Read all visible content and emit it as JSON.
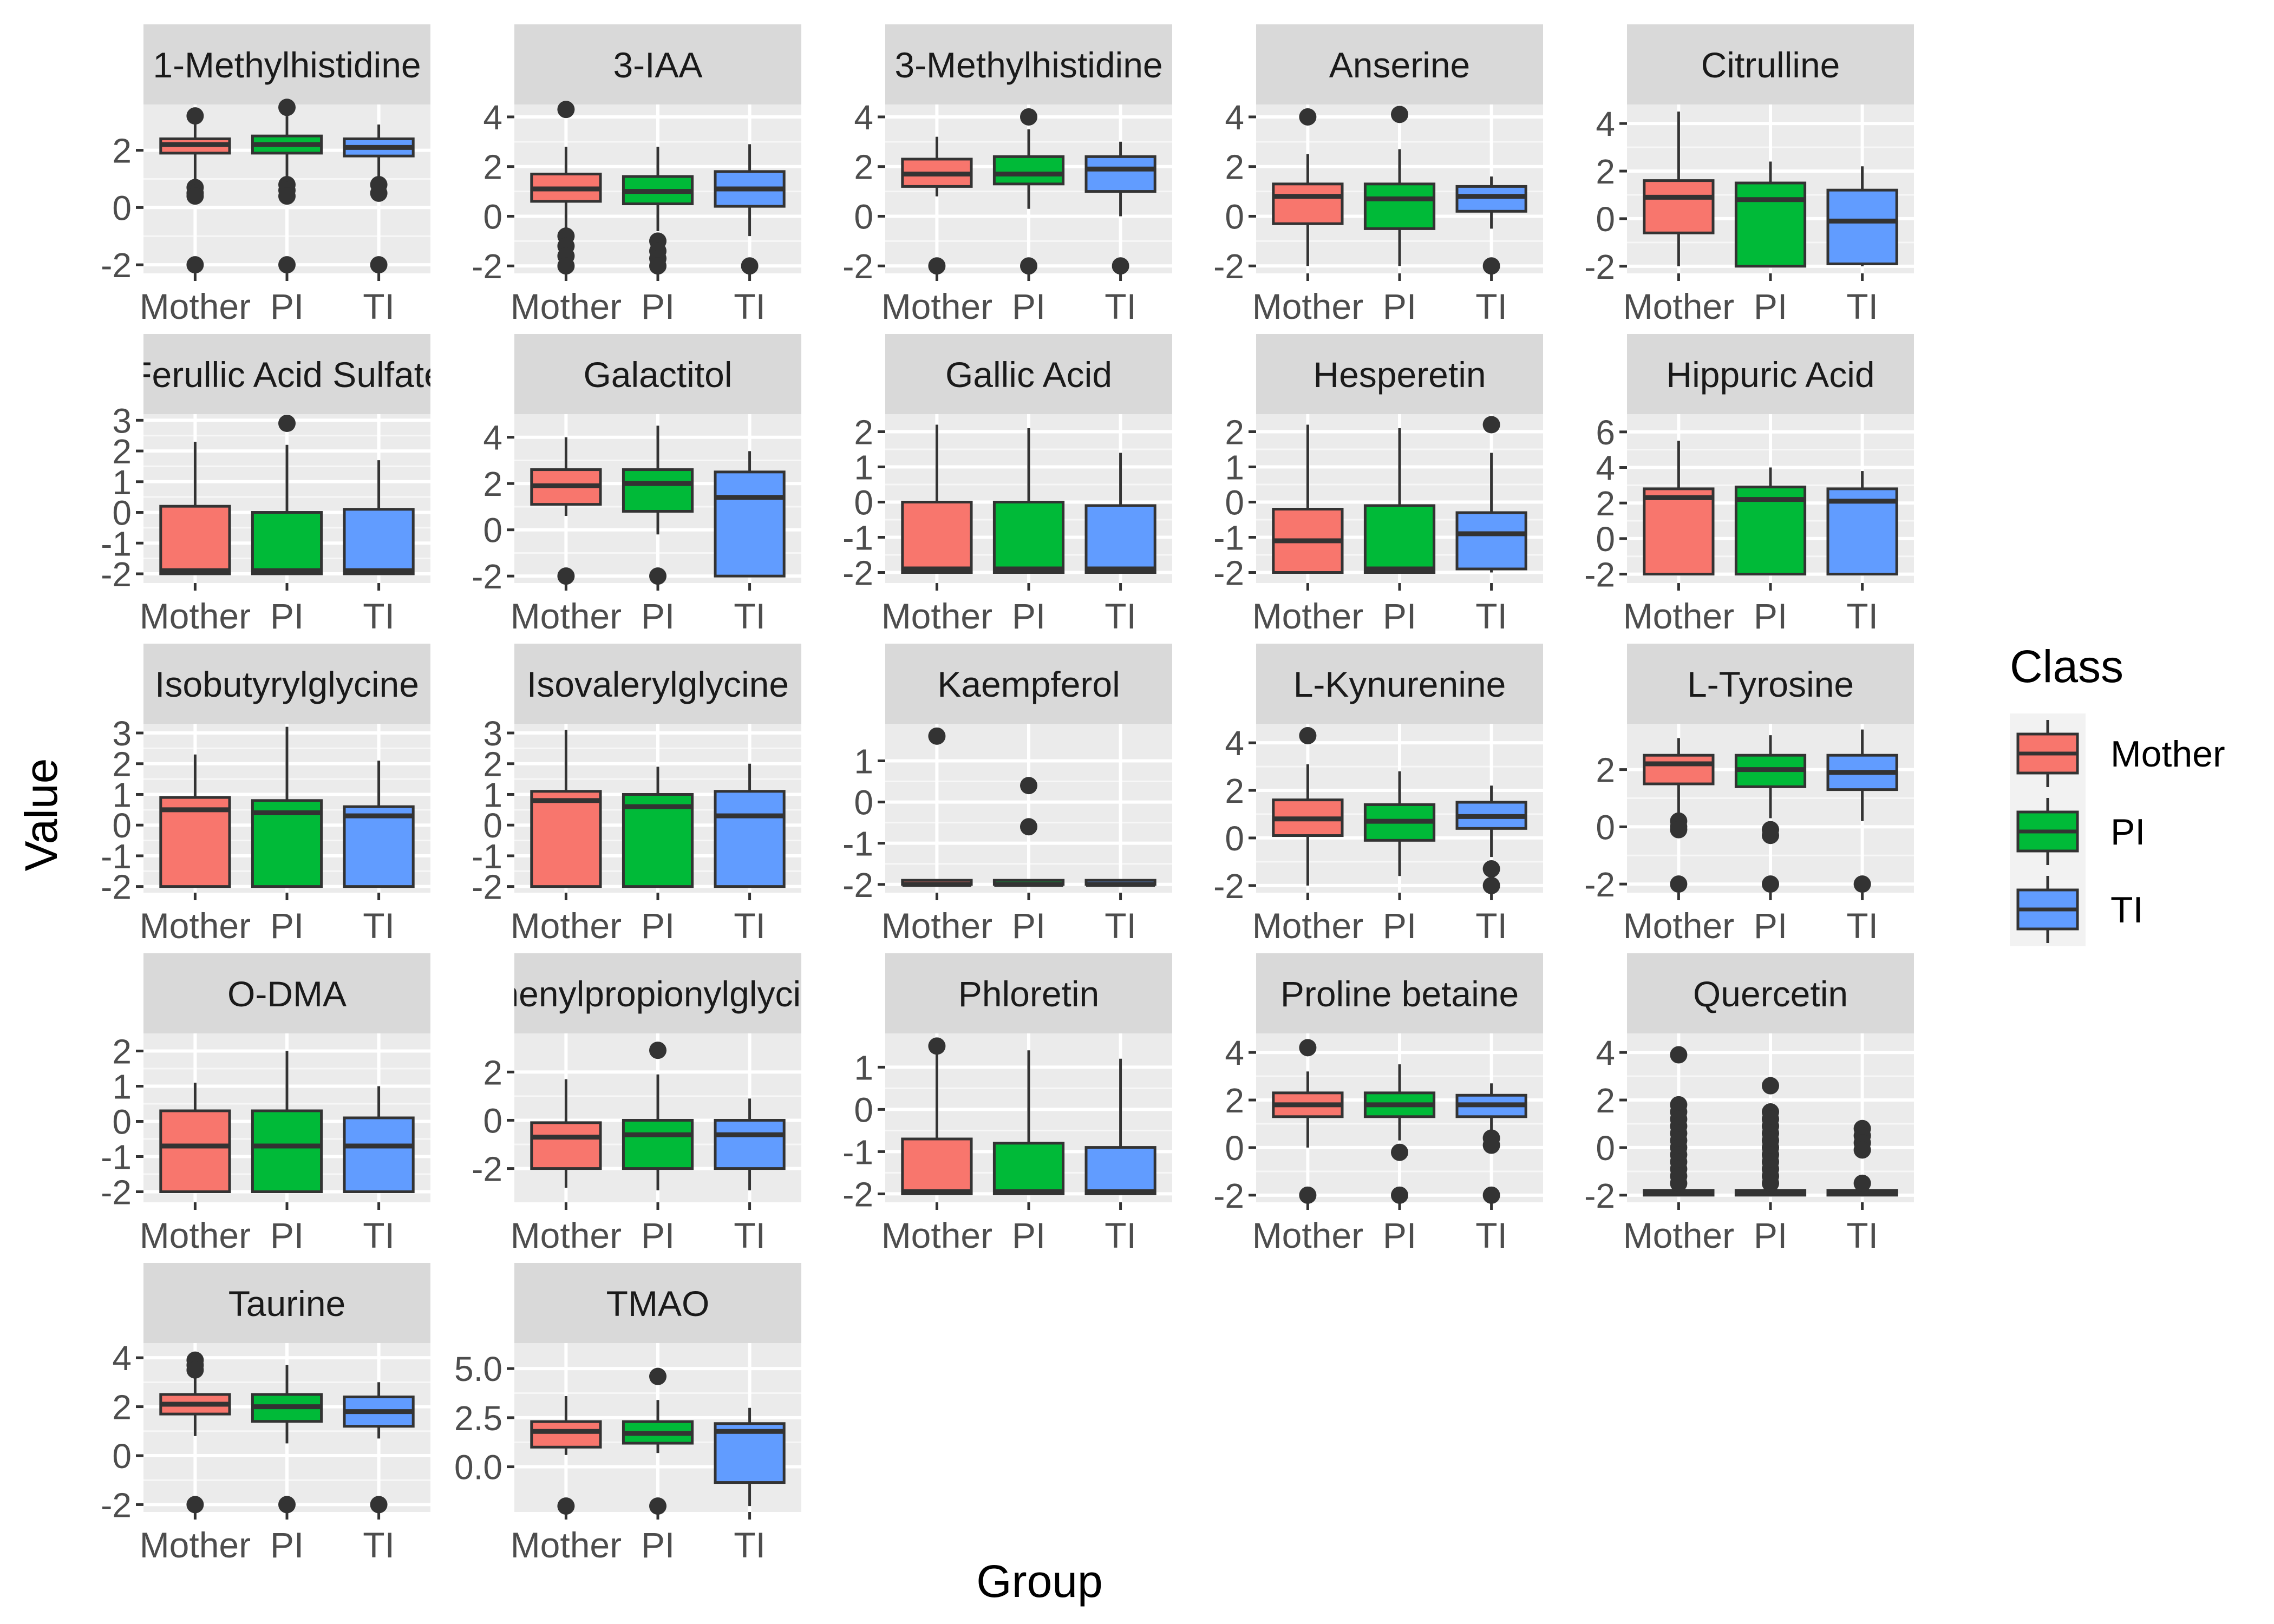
{
  "chart_data": {
    "type": "boxplot",
    "xlabel": "Group",
    "ylabel": "Value",
    "groups": [
      "Mother",
      "PI",
      "TI"
    ],
    "legend": {
      "title": "Class",
      "position": "right",
      "entries": [
        {
          "label": "Mother",
          "color": "#F8766D"
        },
        {
          "label": "PI",
          "color": "#00BA38"
        },
        {
          "label": "TI",
          "color": "#619CFF"
        }
      ]
    },
    "grid": true,
    "panels": [
      {
        "title": "1-Methylhistidine",
        "ylim": [
          -2.3,
          3.6
        ],
        "ticks": [
          -2,
          0,
          2
        ],
        "boxes": [
          {
            "min": 0.8,
            "q1": 1.9,
            "median": 2.2,
            "q3": 2.4,
            "max": 3.0,
            "outliers": [
              3.2,
              0.7,
              0.5,
              0.4,
              -2
            ]
          },
          {
            "min": 0.9,
            "q1": 1.9,
            "median": 2.2,
            "q3": 2.5,
            "max": 3.2,
            "outliers": [
              3.5,
              0.8,
              0.6,
              0.4,
              -2
            ]
          },
          {
            "min": 0.9,
            "q1": 1.8,
            "median": 2.1,
            "q3": 2.4,
            "max": 2.9,
            "outliers": [
              0.8,
              0.5,
              -2
            ]
          }
        ]
      },
      {
        "title": "3-IAA",
        "ylim": [
          -2.3,
          4.5
        ],
        "ticks": [
          -2,
          0,
          2,
          4
        ],
        "boxes": [
          {
            "min": -0.5,
            "q1": 0.6,
            "median": 1.1,
            "q3": 1.7,
            "max": 2.8,
            "outliers": [
              4.3,
              -0.8,
              -1.2,
              -1.6,
              -2
            ]
          },
          {
            "min": -0.6,
            "q1": 0.5,
            "median": 1.0,
            "q3": 1.6,
            "max": 2.8,
            "outliers": [
              -1.0,
              -1.4,
              -1.7,
              -2
            ]
          },
          {
            "min": -0.8,
            "q1": 0.4,
            "median": 1.1,
            "q3": 1.8,
            "max": 2.9,
            "outliers": [
              -2
            ]
          }
        ]
      },
      {
        "title": "3-Methylhistidine",
        "ylim": [
          -2.3,
          4.5
        ],
        "ticks": [
          -2,
          0,
          2,
          4
        ],
        "boxes": [
          {
            "min": 0.8,
            "q1": 1.2,
            "median": 1.7,
            "q3": 2.3,
            "max": 3.2,
            "outliers": [
              -2
            ]
          },
          {
            "min": 0.3,
            "q1": 1.3,
            "median": 1.7,
            "q3": 2.4,
            "max": 3.5,
            "outliers": [
              4.0,
              -2
            ]
          },
          {
            "min": 0.0,
            "q1": 1.0,
            "median": 1.9,
            "q3": 2.4,
            "max": 3.0,
            "outliers": [
              -2
            ]
          }
        ]
      },
      {
        "title": "Anserine",
        "ylim": [
          -2.3,
          4.5
        ],
        "ticks": [
          -2,
          0,
          2,
          4
        ],
        "boxes": [
          {
            "min": -2.0,
            "q1": -0.3,
            "median": 0.8,
            "q3": 1.3,
            "max": 2.5,
            "outliers": [
              4.0
            ]
          },
          {
            "min": -2.0,
            "q1": -0.5,
            "median": 0.7,
            "q3": 1.3,
            "max": 2.7,
            "outliers": [
              4.1
            ]
          },
          {
            "min": -0.5,
            "q1": 0.2,
            "median": 0.8,
            "q3": 1.2,
            "max": 1.6,
            "outliers": [
              -2
            ]
          }
        ]
      },
      {
        "title": "Citrulline",
        "ylim": [
          -2.3,
          4.8
        ],
        "ticks": [
          -2,
          0,
          2,
          4
        ],
        "boxes": [
          {
            "min": -2.0,
            "q1": -0.6,
            "median": 0.9,
            "q3": 1.6,
            "max": 4.5,
            "outliers": []
          },
          {
            "min": -2.0,
            "q1": -2.0,
            "median": 0.8,
            "q3": 1.5,
            "max": 2.4,
            "outliers": []
          },
          {
            "min": -2.0,
            "q1": -1.9,
            "median": -0.1,
            "q3": 1.2,
            "max": 2.2,
            "outliers": []
          }
        ]
      },
      {
        "title": "Ferullic Acid Sulfate",
        "ylim": [
          -2.3,
          3.2
        ],
        "ticks": [
          -2,
          -1,
          0,
          1,
          2,
          3
        ],
        "boxes": [
          {
            "min": -2.0,
            "q1": -2.0,
            "median": -1.9,
            "q3": 0.2,
            "max": 2.3,
            "outliers": []
          },
          {
            "min": -2.0,
            "q1": -2.0,
            "median": -1.9,
            "q3": 0.0,
            "max": 2.2,
            "outliers": [
              2.9
            ]
          },
          {
            "min": -2.0,
            "q1": -2.0,
            "median": -1.9,
            "q3": 0.1,
            "max": 1.7,
            "outliers": []
          }
        ]
      },
      {
        "title": "Galactitol",
        "ylim": [
          -2.3,
          5.0
        ],
        "ticks": [
          -2,
          0,
          2,
          4
        ],
        "boxes": [
          {
            "min": 0.6,
            "q1": 1.1,
            "median": 1.9,
            "q3": 2.6,
            "max": 4.0,
            "outliers": [
              -2
            ]
          },
          {
            "min": -0.2,
            "q1": 0.8,
            "median": 2.0,
            "q3": 2.6,
            "max": 4.5,
            "outliers": [
              -2
            ]
          },
          {
            "min": -2.0,
            "q1": -2.0,
            "median": 1.4,
            "q3": 2.5,
            "max": 3.4,
            "outliers": []
          }
        ]
      },
      {
        "title": "Gallic Acid",
        "ylim": [
          -2.3,
          2.5
        ],
        "ticks": [
          -2,
          -1,
          0,
          1,
          2
        ],
        "boxes": [
          {
            "min": -2.0,
            "q1": -2.0,
            "median": -1.9,
            "q3": 0.0,
            "max": 2.2,
            "outliers": []
          },
          {
            "min": -2.0,
            "q1": -2.0,
            "median": -1.9,
            "q3": 0.0,
            "max": 2.1,
            "outliers": []
          },
          {
            "min": -2.0,
            "q1": -2.0,
            "median": -1.9,
            "q3": -0.1,
            "max": 1.4,
            "outliers": []
          }
        ]
      },
      {
        "title": "Hesperetin",
        "ylim": [
          -2.3,
          2.5
        ],
        "ticks": [
          -2,
          -1,
          0,
          1,
          2
        ],
        "boxes": [
          {
            "min": -2.0,
            "q1": -2.0,
            "median": -1.1,
            "q3": -0.2,
            "max": 2.2,
            "outliers": []
          },
          {
            "min": -2.0,
            "q1": -2.0,
            "median": -1.9,
            "q3": -0.1,
            "max": 2.1,
            "outliers": []
          },
          {
            "min": -2.0,
            "q1": -1.9,
            "median": -0.9,
            "q3": -0.3,
            "max": 1.4,
            "outliers": [
              2.2
            ]
          }
        ]
      },
      {
        "title": "Hippuric Acid",
        "ylim": [
          -2.5,
          7.0
        ],
        "ticks": [
          -2,
          0,
          2,
          4,
          6
        ],
        "boxes": [
          {
            "min": -2.0,
            "q1": -2.0,
            "median": 2.3,
            "q3": 2.8,
            "max": 5.5,
            "outliers": []
          },
          {
            "min": -2.0,
            "q1": -2.0,
            "median": 2.2,
            "q3": 2.9,
            "max": 4.0,
            "outliers": []
          },
          {
            "min": -2.0,
            "q1": -2.0,
            "median": 2.1,
            "q3": 2.8,
            "max": 3.8,
            "outliers": []
          }
        ]
      },
      {
        "title": "Isobutyrylglycine",
        "ylim": [
          -2.2,
          3.3
        ],
        "ticks": [
          -2,
          -1,
          0,
          1,
          2,
          3
        ],
        "boxes": [
          {
            "min": -2.0,
            "q1": -2.0,
            "median": 0.5,
            "q3": 0.9,
            "max": 2.3,
            "outliers": []
          },
          {
            "min": -2.0,
            "q1": -2.0,
            "median": 0.4,
            "q3": 0.8,
            "max": 3.2,
            "outliers": []
          },
          {
            "min": -2.0,
            "q1": -2.0,
            "median": 0.3,
            "q3": 0.6,
            "max": 2.1,
            "outliers": []
          }
        ]
      },
      {
        "title": "Isovalerylglycine",
        "ylim": [
          -2.2,
          3.3
        ],
        "ticks": [
          -2,
          -1,
          0,
          1,
          2,
          3
        ],
        "boxes": [
          {
            "min": -2.0,
            "q1": -2.0,
            "median": 0.8,
            "q3": 1.1,
            "max": 3.1,
            "outliers": []
          },
          {
            "min": -2.0,
            "q1": -2.0,
            "median": 0.6,
            "q3": 1.0,
            "max": 1.9,
            "outliers": []
          },
          {
            "min": -2.0,
            "q1": -2.0,
            "median": 0.3,
            "q3": 1.1,
            "max": 2.0,
            "outliers": []
          }
        ]
      },
      {
        "title": "Kaempferol",
        "ylim": [
          -2.2,
          1.9
        ],
        "ticks": [
          -2,
          -1,
          0,
          1
        ],
        "boxes": [
          {
            "min": -2.0,
            "q1": -2.0,
            "median": -2.0,
            "q3": -1.9,
            "max": -1.9,
            "outliers": [
              1.6
            ]
          },
          {
            "min": -2.0,
            "q1": -2.0,
            "median": -2.0,
            "q3": -1.9,
            "max": -1.9,
            "outliers": [
              0.4,
              -0.6
            ]
          },
          {
            "min": -2.0,
            "q1": -2.0,
            "median": -2.0,
            "q3": -1.9,
            "max": -1.9,
            "outliers": []
          }
        ]
      },
      {
        "title": "L-Kynurenine",
        "ylim": [
          -2.3,
          4.8
        ],
        "ticks": [
          -2,
          0,
          2,
          4
        ],
        "boxes": [
          {
            "min": -2.0,
            "q1": 0.1,
            "median": 0.8,
            "q3": 1.6,
            "max": 3.1,
            "outliers": [
              4.3
            ]
          },
          {
            "min": -1.6,
            "q1": -0.1,
            "median": 0.7,
            "q3": 1.4,
            "max": 2.8,
            "outliers": []
          },
          {
            "min": -0.8,
            "q1": 0.4,
            "median": 0.9,
            "q3": 1.5,
            "max": 2.2,
            "outliers": [
              -1.3,
              -2
            ]
          }
        ]
      },
      {
        "title": "L-Tyrosine",
        "ylim": [
          -2.3,
          3.6
        ],
        "ticks": [
          -2,
          0,
          2
        ],
        "boxes": [
          {
            "min": 0.3,
            "q1": 1.5,
            "median": 2.2,
            "q3": 2.5,
            "max": 3.1,
            "outliers": [
              0.2,
              0.0,
              -0.1,
              -2
            ]
          },
          {
            "min": 0.3,
            "q1": 1.4,
            "median": 2.0,
            "q3": 2.5,
            "max": 3.2,
            "outliers": [
              -0.1,
              -0.3,
              -2
            ]
          },
          {
            "min": 0.2,
            "q1": 1.3,
            "median": 1.9,
            "q3": 2.5,
            "max": 3.4,
            "outliers": [
              -2
            ]
          }
        ]
      },
      {
        "title": "O-DMA",
        "ylim": [
          -2.3,
          2.5
        ],
        "ticks": [
          -2,
          -1,
          0,
          1,
          2
        ],
        "boxes": [
          {
            "min": -2.0,
            "q1": -2.0,
            "median": -0.7,
            "q3": 0.3,
            "max": 1.1,
            "outliers": []
          },
          {
            "min": -2.0,
            "q1": -2.0,
            "median": -0.7,
            "q3": 0.3,
            "max": 2.0,
            "outliers": []
          },
          {
            "min": -2.0,
            "q1": -2.0,
            "median": -0.7,
            "q3": 0.1,
            "max": 1.0,
            "outliers": []
          }
        ]
      },
      {
        "title": "Phenylpropionylglycine",
        "ylim": [
          -3.4,
          3.6
        ],
        "ticks": [
          -2,
          0,
          2
        ],
        "boxes": [
          {
            "min": -2.8,
            "q1": -2.0,
            "median": -0.7,
            "q3": -0.1,
            "max": 1.7,
            "outliers": []
          },
          {
            "min": -2.9,
            "q1": -2.0,
            "median": -0.6,
            "q3": 0.0,
            "max": 1.9,
            "outliers": [
              2.9
            ]
          },
          {
            "min": -2.9,
            "q1": -2.0,
            "median": -0.6,
            "q3": 0.0,
            "max": 0.9,
            "outliers": []
          }
        ]
      },
      {
        "title": "Phloretin",
        "ylim": [
          -2.2,
          1.8
        ],
        "ticks": [
          -2,
          -1,
          0,
          1
        ],
        "boxes": [
          {
            "min": -2.0,
            "q1": -2.0,
            "median": -1.95,
            "q3": -0.7,
            "max": 1.4,
            "outliers": [
              1.5
            ]
          },
          {
            "min": -2.0,
            "q1": -2.0,
            "median": -1.95,
            "q3": -0.8,
            "max": 1.4,
            "outliers": []
          },
          {
            "min": -2.0,
            "q1": -2.0,
            "median": -1.95,
            "q3": -0.9,
            "max": 1.2,
            "outliers": []
          }
        ]
      },
      {
        "title": "Proline betaine",
        "ylim": [
          -2.3,
          4.8
        ],
        "ticks": [
          -2,
          0,
          2,
          4
        ],
        "boxes": [
          {
            "min": 0.0,
            "q1": 1.3,
            "median": 1.8,
            "q3": 2.3,
            "max": 3.2,
            "outliers": [
              4.2,
              -2
            ]
          },
          {
            "min": 0.3,
            "q1": 1.3,
            "median": 1.8,
            "q3": 2.3,
            "max": 3.5,
            "outliers": [
              -0.2,
              -2
            ]
          },
          {
            "min": 0.6,
            "q1": 1.3,
            "median": 1.8,
            "q3": 2.2,
            "max": 2.7,
            "outliers": [
              0.4,
              0.1,
              -2
            ]
          }
        ]
      },
      {
        "title": "Quercetin",
        "ylim": [
          -2.3,
          4.8
        ],
        "ticks": [
          -2,
          0,
          2,
          4
        ],
        "boxes": [
          {
            "min": -2.0,
            "q1": -2.0,
            "median": -1.9,
            "q3": -1.8,
            "max": -1.7,
            "outliers": [
              3.9,
              1.8,
              1.5,
              1.2,
              0.9,
              0.6,
              0.3,
              0.0,
              -0.3,
              -0.6,
              -0.9,
              -1.2,
              -1.5
            ]
          },
          {
            "min": -2.0,
            "q1": -2.0,
            "median": -1.9,
            "q3": -1.8,
            "max": -1.7,
            "outliers": [
              2.6,
              1.5,
              1.2,
              0.9,
              0.6,
              0.3,
              0.0,
              -0.3,
              -0.6,
              -0.9,
              -1.2,
              -1.5
            ]
          },
          {
            "min": -2.0,
            "q1": -2.0,
            "median": -1.9,
            "q3": -1.8,
            "max": -1.7,
            "outliers": [
              0.8,
              0.5,
              0.2,
              -0.1,
              -1.5
            ]
          }
        ]
      },
      {
        "title": "Taurine",
        "ylim": [
          -2.3,
          4.6
        ],
        "ticks": [
          -2,
          0,
          2,
          4
        ],
        "boxes": [
          {
            "min": 0.8,
            "q1": 1.7,
            "median": 2.1,
            "q3": 2.5,
            "max": 3.3,
            "outliers": [
              3.9,
              3.7,
              3.5,
              -2
            ]
          },
          {
            "min": 0.5,
            "q1": 1.4,
            "median": 2.0,
            "q3": 2.5,
            "max": 3.7,
            "outliers": [
              -2
            ]
          },
          {
            "min": 0.7,
            "q1": 1.2,
            "median": 1.8,
            "q3": 2.4,
            "max": 3.0,
            "outliers": [
              -2
            ]
          }
        ]
      },
      {
        "title": "TMAO",
        "ylim": [
          -2.3,
          6.3
        ],
        "ticks": [
          0.0,
          2.5,
          5.0
        ],
        "tick_labels": [
          "0.0",
          "2.5",
          "5.0"
        ],
        "boxes": [
          {
            "min": 0.6,
            "q1": 1.0,
            "median": 1.8,
            "q3": 2.3,
            "max": 3.6,
            "outliers": [
              -2
            ]
          },
          {
            "min": 0.7,
            "q1": 1.2,
            "median": 1.7,
            "q3": 2.3,
            "max": 3.4,
            "outliers": [
              4.6,
              -2
            ]
          },
          {
            "min": -2.0,
            "q1": -0.8,
            "median": 1.8,
            "q3": 2.2,
            "max": 3.0,
            "outliers": []
          }
        ]
      }
    ]
  }
}
